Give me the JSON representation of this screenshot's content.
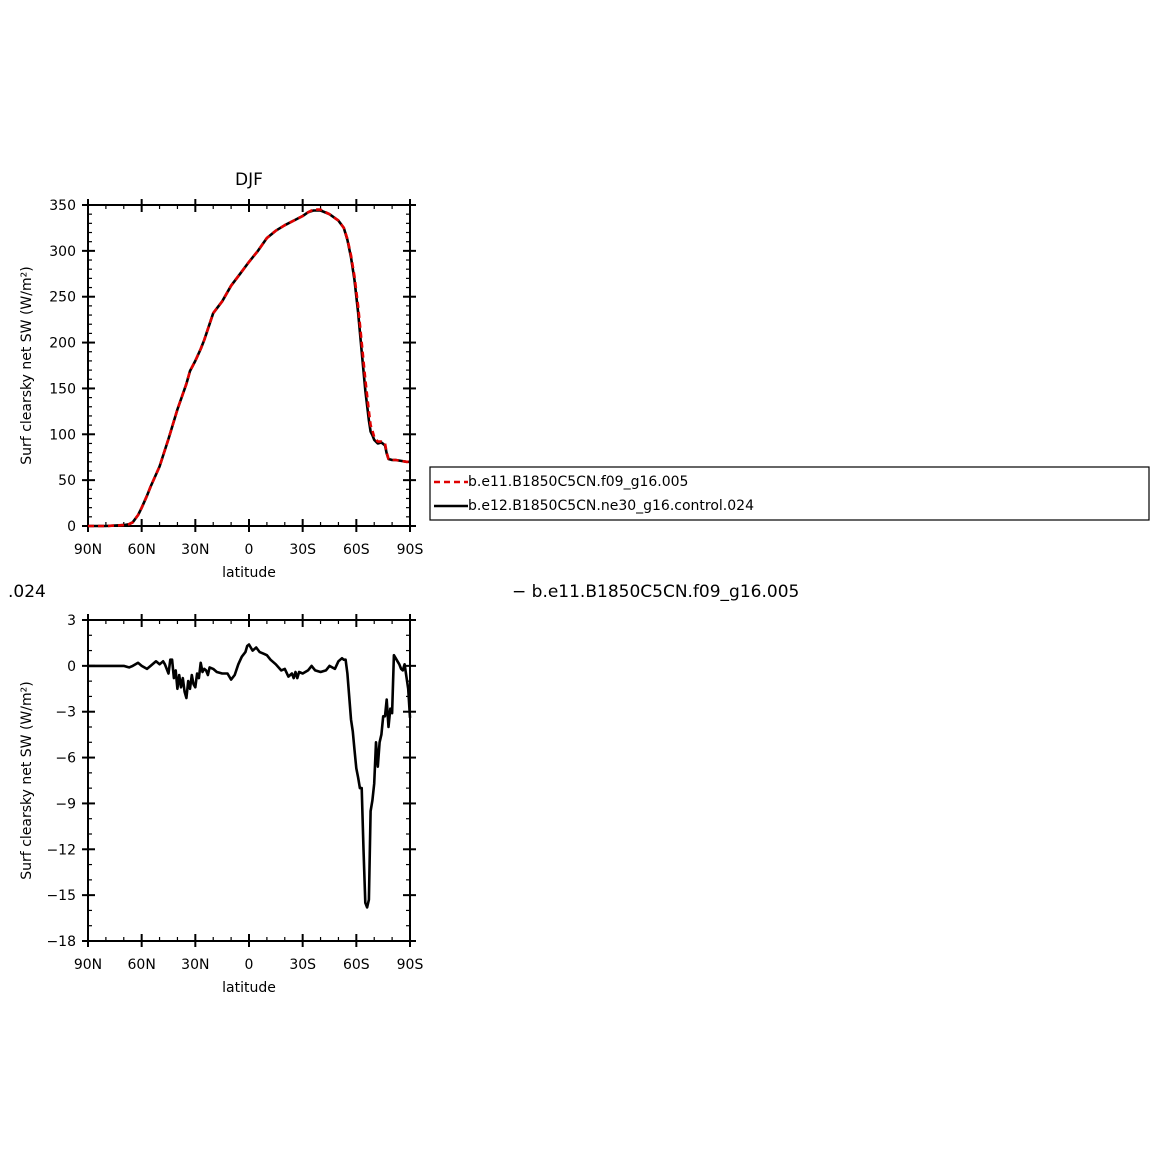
{
  "figure": {
    "stray_title_fragment": ".024",
    "stray_title_text": "− b.e11.B1850C5CN.f09_g16.005"
  },
  "legend": {
    "entries": [
      {
        "label": "b.e11.B1850C5CN.f09_g16.005",
        "color": "#e00000",
        "dash": true
      },
      {
        "label": "b.e12.B1850C5CN.ne30_g16.control.024",
        "color": "#000000",
        "dash": false
      }
    ]
  },
  "chart_data": [
    {
      "type": "line",
      "title": "DJF",
      "xlabel": "latitude",
      "ylabel": "Surf clearsky net SW (W/m²)",
      "xlim": [
        90,
        -90
      ],
      "ylim": [
        0,
        350
      ],
      "x_ticks": [
        90,
        60,
        30,
        0,
        -30,
        -60,
        -90
      ],
      "x_tick_labels": [
        "90N",
        "60N",
        "30N",
        "0",
        "30S",
        "60S",
        "90S"
      ],
      "y_ticks": [
        0,
        50,
        100,
        150,
        200,
        250,
        300,
        350
      ],
      "y_tick_labels": [
        "0",
        "50",
        "100",
        "150",
        "200",
        "250",
        "300",
        "350"
      ],
      "series": [
        {
          "name": "b.e11.B1850C5CN.f09_g16.005",
          "color": "#e00000",
          "dash": true,
          "x": [
            90,
            80,
            70,
            67,
            65,
            62,
            60,
            57,
            55,
            50,
            45,
            40,
            35,
            33,
            30,
            27,
            25,
            20,
            15,
            10,
            5,
            0,
            -5,
            -10,
            -15,
            -20,
            -25,
            -30,
            -33,
            -36,
            -40,
            -45,
            -50,
            -53,
            -55,
            -57,
            -59,
            -61,
            -63,
            -65,
            -67,
            -68,
            -69,
            -70,
            -72,
            -74,
            -76,
            -77,
            -78,
            -80,
            -82,
            -85,
            -88,
            -90
          ],
          "y": [
            0,
            0,
            1,
            2,
            4,
            12,
            20,
            33,
            43,
            65,
            95,
            127,
            155,
            169,
            180,
            193,
            203,
            232,
            245,
            262,
            275,
            288,
            300,
            314,
            322,
            328,
            333,
            338,
            342,
            345,
            345,
            340,
            333,
            325,
            313,
            295,
            272,
            240,
            200,
            160,
            125,
            110,
            104,
            97,
            92,
            92,
            90,
            80,
            73,
            72,
            72,
            71,
            70,
            70
          ]
        },
        {
          "name": "b.e12.B1850C5CN.ne30_g16.control.024",
          "color": "#000000",
          "dash": false,
          "x": [
            90,
            80,
            70,
            67,
            65,
            62,
            60,
            57,
            55,
            50,
            45,
            40,
            35,
            33,
            30,
            27,
            25,
            20,
            15,
            10,
            5,
            0,
            -5,
            -10,
            -15,
            -20,
            -25,
            -30,
            -33,
            -36,
            -40,
            -45,
            -50,
            -53,
            -55,
            -57,
            -59,
            -61,
            -63,
            -65,
            -67,
            -68,
            -69,
            -70,
            -72,
            -74,
            -76,
            -77,
            -78,
            -80,
            -82,
            -85,
            -88,
            -90
          ],
          "y": [
            0,
            0,
            1,
            2,
            4,
            12,
            20,
            33,
            43,
            65,
            95,
            127,
            155,
            169,
            180,
            193,
            203,
            232,
            245,
            262,
            275,
            288,
            300,
            314,
            322,
            328,
            333,
            338,
            342,
            344,
            344,
            340,
            333,
            325,
            312,
            293,
            268,
            233,
            190,
            148,
            115,
            103,
            99,
            94,
            90,
            91,
            88,
            79,
            73,
            72,
            72,
            71,
            70,
            70
          ]
        }
      ]
    },
    {
      "type": "line",
      "title": "",
      "xlabel": "latitude",
      "ylabel": "Surf clearsky net SW (W/m²)",
      "xlim": [
        90,
        -90
      ],
      "ylim": [
        -18,
        3
      ],
      "x_ticks": [
        90,
        60,
        30,
        0,
        -30,
        -60,
        -90
      ],
      "x_tick_labels": [
        "90N",
        "60N",
        "30N",
        "0",
        "30S",
        "60S",
        "90S"
      ],
      "y_ticks": [
        3,
        0,
        -3,
        -6,
        -9,
        -12,
        -15,
        -18
      ],
      "y_tick_labels": [
        "3",
        "0",
        "−3",
        "−6",
        "−9",
        "−12",
        "−15",
        "−18"
      ],
      "series": [
        {
          "color": "#000000",
          "dash": false,
          "x": [
            90,
            80,
            70,
            67,
            65,
            62,
            60,
            57,
            55,
            52,
            50,
            48,
            47,
            46,
            45,
            44,
            43,
            42,
            41,
            40,
            39,
            38,
            37,
            36,
            35,
            34,
            33,
            32,
            31,
            30,
            29,
            28,
            27,
            26,
            25,
            24,
            23,
            22,
            20,
            18,
            15,
            12,
            10,
            8,
            6,
            4,
            2,
            1,
            0,
            -2,
            -4,
            -6,
            -8,
            -10,
            -12,
            -15,
            -18,
            -20,
            -22,
            -24,
            -25,
            -26,
            -27,
            -28,
            -30,
            -33,
            -35,
            -37,
            -40,
            -43,
            -45,
            -48,
            -50,
            -52,
            -53,
            -54,
            -55,
            -56,
            -57,
            -58,
            -59,
            -60,
            -61,
            -62,
            -63,
            -64,
            -65,
            -66,
            -67,
            -68,
            -69,
            -70,
            -71,
            -72,
            -73,
            -74,
            -75,
            -76,
            -77,
            -78,
            -79,
            -80,
            -81,
            -82,
            -83,
            -84,
            -85,
            -86,
            -87,
            -88,
            -89,
            -90
          ],
          "y": [
            0,
            0,
            0,
            -0.1,
            0,
            0.2,
            0,
            -0.2,
            0,
            0.3,
            0.1,
            0.3,
            0.1,
            -0.2,
            -0.5,
            0.4,
            0.4,
            -0.8,
            -0.3,
            -1.5,
            -0.6,
            -1.4,
            -0.8,
            -1.7,
            -2.1,
            -1,
            -1.5,
            -0.6,
            -1.2,
            -1.4,
            -0.5,
            -0.8,
            0.2,
            -0.4,
            -0.2,
            -0.3,
            -0.6,
            -0.1,
            -0.2,
            -0.4,
            -0.5,
            -0.5,
            -0.9,
            -0.6,
            0.1,
            0.6,
            0.9,
            1.3,
            1.4,
            1,
            1.2,
            0.9,
            0.8,
            0.7,
            0.4,
            0.1,
            -0.3,
            -0.2,
            -0.7,
            -0.5,
            -0.8,
            -0.4,
            -0.8,
            -0.4,
            -0.5,
            -0.3,
            0,
            -0.3,
            -0.4,
            -0.3,
            0,
            -0.2,
            0.3,
            0.5,
            0.4,
            0.4,
            -0.5,
            -2,
            -3.5,
            -4.3,
            -5.5,
            -6.7,
            -7.3,
            -8,
            -8,
            -12,
            -15.5,
            -15.8,
            -15.3,
            -9.5,
            -8.8,
            -7.7,
            -5,
            -6.6,
            -5,
            -4.5,
            -3.3,
            -3.3,
            -2.2,
            -4,
            -2.8,
            -3.1,
            0.7,
            0.5,
            0.3,
            0.1,
            -0.2,
            -0.3,
            0.1,
            -0.7,
            -1.5,
            -3.4
          ]
        }
      ]
    }
  ]
}
